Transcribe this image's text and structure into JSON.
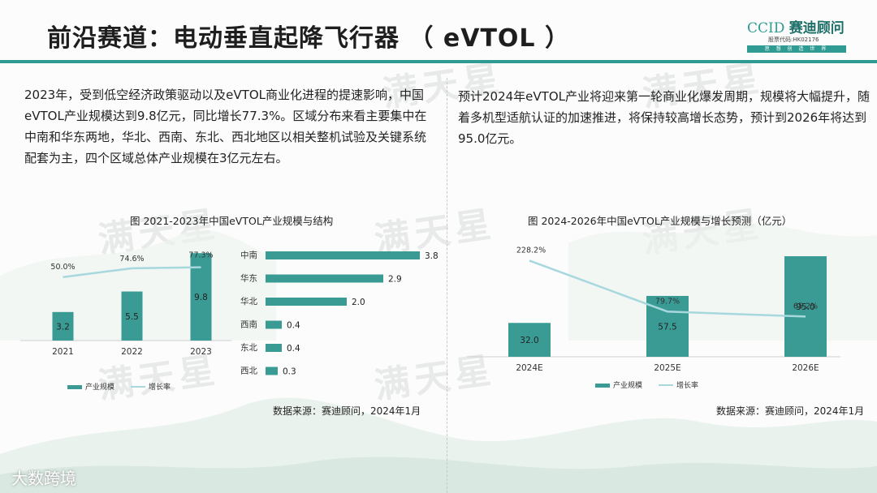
{
  "header": {
    "title": "前沿赛道：电动垂直起降飞行器 （ eVTOL ）",
    "logo": {
      "brand_latin": "CCID",
      "brand_cn": "赛迪顾问",
      "stock_code": "股票代码:HK02176",
      "slogan": "思 想 创 造 世 界"
    }
  },
  "left_paragraph": "2023年，受到低空经济政策驱动以及eVTOL商业化进程的提速影响，中国eVTOL产业规模达到9.8亿元，同比增长77.3%。区域分布来看主要集中在中南和华东两地，华北、西南、东北、西北地区以相关整机试验及关键系统配套为主，四个区域总体产业规模在3亿元左右。",
  "right_paragraph": "预计2024年eVTOL产业将迎来第一轮商业化爆发周期，规模将大幅提升，随着多机型适航认证的加速推进，将保持较高增长态势，预计到2026年将达到95.0亿元。",
  "left_chart_title": "图  2021-2023年中国eVTOL产业规模与结构",
  "right_chart_title": "图  2024-2026年中国eVTOL产业规模与增长预测（亿元）",
  "left_source": "数据来源：赛迪顾问，2024年1月",
  "right_source": "数据来源：赛迪顾问，2024年1月",
  "watermark": "满天星",
  "footer_brand": "大数跨境",
  "colors": {
    "accent": "#2f9b92",
    "bar": "#3a9b95",
    "line": "#a6d8dd"
  },
  "chart_data": [
    {
      "type": "bar",
      "categories": [
        "2021",
        "2022",
        "2023"
      ],
      "series": [
        {
          "name": "产业规模",
          "values": [
            3.2,
            5.5,
            9.8
          ],
          "labels": [
            "3.2",
            "5.5",
            "9.8"
          ]
        },
        {
          "name": "增长率",
          "type": "line",
          "values": [
            50.0,
            74.6,
            77.3
          ],
          "labels": [
            "50.0%",
            "74.6%",
            "77.3%"
          ]
        }
      ],
      "legend": "bottom"
    },
    {
      "type": "bar",
      "orientation": "horizontal",
      "categories": [
        "中南",
        "华东",
        "华北",
        "西南",
        "东北",
        "西北"
      ],
      "values": [
        3.8,
        2.9,
        2.0,
        0.4,
        0.4,
        0.3
      ],
      "labels": [
        "3.8",
        "2.9",
        "2.0",
        "0.4",
        "0.4",
        "0.3"
      ]
    },
    {
      "type": "bar",
      "categories": [
        "2024E",
        "2025E",
        "2026E"
      ],
      "series": [
        {
          "name": "产业规模",
          "values": [
            32.0,
            57.5,
            95.0
          ],
          "labels": [
            "32.0",
            "57.5",
            "95.0"
          ]
        },
        {
          "name": "增长率",
          "type": "line",
          "values": [
            228.2,
            79.7,
            65.2
          ],
          "labels": [
            "228.2%",
            "79.7%",
            "65.2%"
          ]
        }
      ],
      "legend": "bottom"
    }
  ]
}
